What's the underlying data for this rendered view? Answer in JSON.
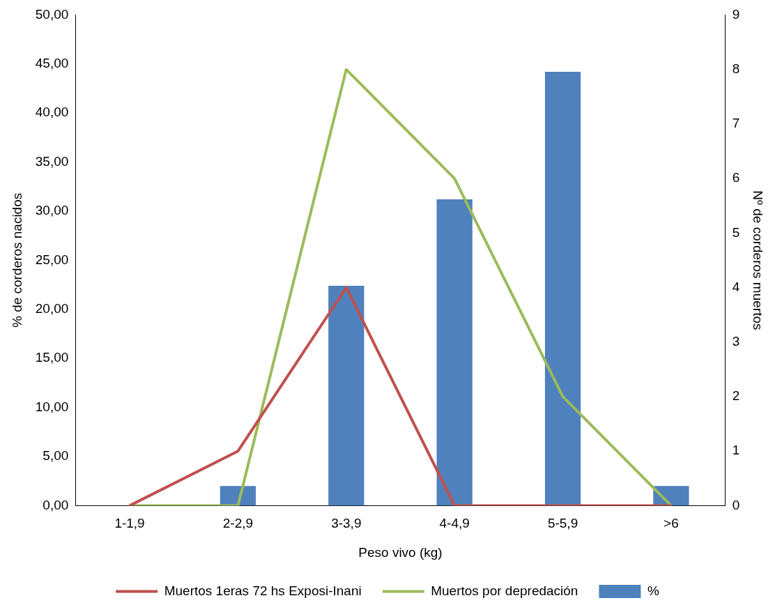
{
  "chart_data": {
    "type": "bar",
    "xlabel": "Peso vivo (kg)",
    "ylabel": "% de corderos nacidos",
    "y2label": "Nº de corderos muertos",
    "categories": [
      "1-1,9",
      "2-2,9",
      "3-3,9",
      "4-4,9",
      "5-5,9",
      ">6"
    ],
    "series": [
      {
        "name": "%",
        "color": "#4f81bd",
        "values": [
          0,
          2,
          22.4,
          31.2,
          44.2,
          2
        ]
      },
      {
        "name": "Muertos 1eras 72 hs Exposi-Inani",
        "type": "line",
        "axis": "y2",
        "color": "#c0504d",
        "values": [
          0,
          1,
          4,
          0,
          0,
          0
        ]
      },
      {
        "name": "Muertos por depredación",
        "type": "line",
        "axis": "y2",
        "color": "#9bbb59",
        "values": [
          0,
          0,
          8,
          6,
          2,
          0
        ]
      }
    ],
    "ylim": [
      0,
      50
    ],
    "yticks": [
      {
        "value": 0,
        "label": "0,00"
      },
      {
        "value": 5,
        "label": "5,00"
      },
      {
        "value": 10,
        "label": "10,00"
      },
      {
        "value": 15,
        "label": "15,00"
      },
      {
        "value": 20,
        "label": "20,00"
      },
      {
        "value": 25,
        "label": "25,00"
      },
      {
        "value": 30,
        "label": "30,00"
      },
      {
        "value": 35,
        "label": "35,00"
      },
      {
        "value": 40,
        "label": "40,00"
      },
      {
        "value": 45,
        "label": "45,00"
      },
      {
        "value": 50,
        "label": "50,00"
      }
    ],
    "y2lim": [
      0,
      9
    ],
    "y2ticks": [
      0,
      1,
      2,
      3,
      4,
      5,
      6,
      7,
      8,
      9
    ],
    "grid": false,
    "legend": "bottom",
    "marker": "none",
    "line_style": "solid"
  }
}
